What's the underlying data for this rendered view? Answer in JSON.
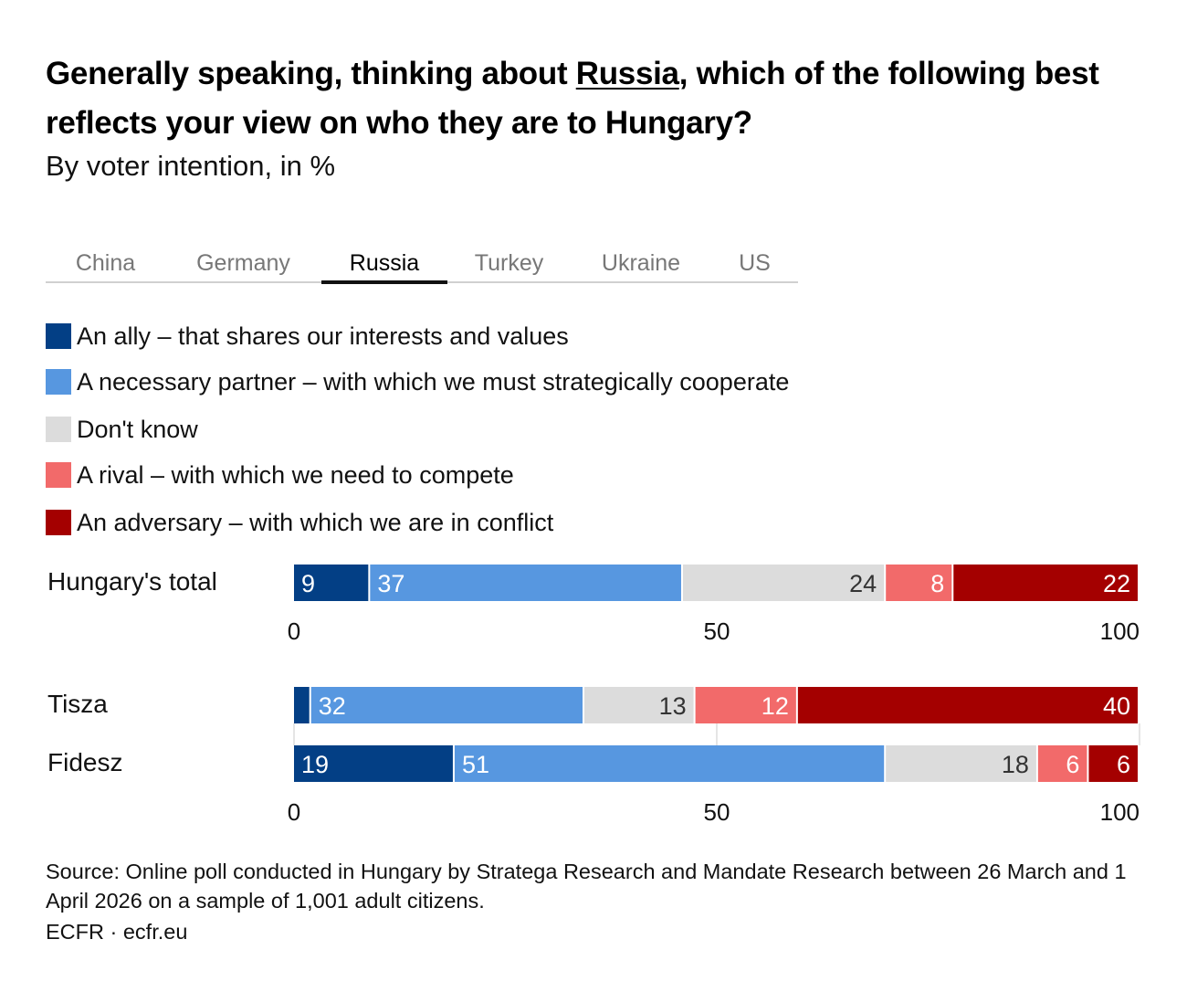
{
  "title": {
    "before": "Generally speaking, thinking about ",
    "highlight": "Russia",
    "after": ", which of the following best reflects your view on who they are to Hungary?"
  },
  "subtitle": "By voter intention, in %",
  "tabs": [
    {
      "label": "China",
      "active": false
    },
    {
      "label": "Germany",
      "active": false
    },
    {
      "label": "Russia",
      "active": true
    },
    {
      "label": "Turkey",
      "active": false
    },
    {
      "label": "Ukraine",
      "active": false
    },
    {
      "label": "US",
      "active": false
    }
  ],
  "legend": [
    {
      "label": "An ally – that shares our interests and values",
      "color": "#033f85"
    },
    {
      "label": "A necessary partner – with which we must strategically cooperate",
      "color": "#5797e0"
    },
    {
      "label": "Don't know",
      "color": "#dcdcdc"
    },
    {
      "label": "A rival – with which we need to compete",
      "color": "#f26a6a"
    },
    {
      "label": "An adversary – with which we are in conflict",
      "color": "#a40000"
    }
  ],
  "chart_data": [
    {
      "type": "bar",
      "orientation": "horizontal",
      "stacked": true,
      "categories": [
        "Hungary's total"
      ],
      "series": [
        {
          "name": "An ally – that shares our interests and values",
          "color": "#033f85",
          "values": [
            9
          ],
          "labels": [
            "9"
          ]
        },
        {
          "name": "A necessary partner – with which we must strategically cooperate",
          "color": "#5797e0",
          "values": [
            37
          ],
          "labels": [
            "37"
          ]
        },
        {
          "name": "Don't know",
          "color": "#dcdcdc",
          "values": [
            24
          ],
          "labels": [
            "24"
          ]
        },
        {
          "name": "A rival – with which we need to compete",
          "color": "#f26a6a",
          "values": [
            8
          ],
          "labels": [
            "8"
          ]
        },
        {
          "name": "An adversary – with which we are in conflict",
          "color": "#a40000",
          "values": [
            22
          ],
          "labels": [
            "22"
          ]
        }
      ],
      "xlim": [
        0,
        100
      ],
      "xticks": [
        "0",
        "50",
        "100"
      ]
    },
    {
      "type": "bar",
      "orientation": "horizontal",
      "stacked": true,
      "categories": [
        "Tisza",
        "Fidesz"
      ],
      "series": [
        {
          "name": "An ally – that shares our interests and values",
          "color": "#033f85",
          "values": [
            2,
            19
          ],
          "labels": [
            "",
            "19"
          ]
        },
        {
          "name": "A necessary partner – with which we must strategically cooperate",
          "color": "#5797e0",
          "values": [
            32,
            51
          ],
          "labels": [
            "32",
            "51"
          ]
        },
        {
          "name": "Don't know",
          "color": "#dcdcdc",
          "values": [
            13,
            18
          ],
          "labels": [
            "13",
            "18"
          ]
        },
        {
          "name": "A rival – with which we need to compete",
          "color": "#f26a6a",
          "values": [
            12,
            6
          ],
          "labels": [
            "12",
            "6"
          ]
        },
        {
          "name": "An adversary – with which we are in conflict",
          "color": "#a40000",
          "values": [
            40,
            6
          ],
          "labels": [
            "40",
            "6"
          ]
        }
      ],
      "xlim": [
        0,
        100
      ],
      "xticks": [
        "0",
        "50",
        "100"
      ]
    }
  ],
  "footer": {
    "source": "Source: Online poll conducted in Hungary by Stratega Research and Mandate Research between 26 March and 1 April 2026 on a sample of 1,001 adult citizens.",
    "credit": "ECFR · ecfr.eu"
  }
}
